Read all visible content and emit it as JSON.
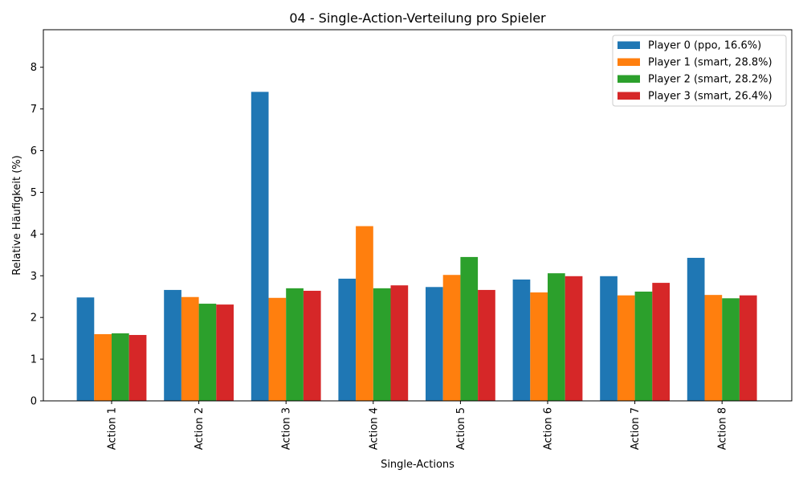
{
  "chart_data": {
    "type": "bar",
    "title": "04 - Single-Action-Verteilung pro Spieler",
    "xlabel": "Single-Actions",
    "ylabel": "Relative Häufigkeit (%)",
    "ylim": [
      0,
      8.9
    ],
    "yticks": [
      0,
      1,
      2,
      3,
      4,
      5,
      6,
      7,
      8
    ],
    "grid": false,
    "legend_position": "top-right",
    "categories": [
      "Action 1",
      "Action 2",
      "Action 3",
      "Action 4",
      "Action 5",
      "Action 6",
      "Action 7",
      "Action 8"
    ],
    "series": [
      {
        "name": "Player 0 (ppo, 16.6%)",
        "color": "#1f77b4",
        "values": [
          2.48,
          2.66,
          7.41,
          2.93,
          2.73,
          2.91,
          2.99,
          3.43
        ]
      },
      {
        "name": "Player 1 (smart, 28.8%)",
        "color": "#ff7f0e",
        "values": [
          1.6,
          2.49,
          2.47,
          4.19,
          3.02,
          2.6,
          2.53,
          2.54
        ]
      },
      {
        "name": "Player 2 (smart, 28.2%)",
        "color": "#2ca02c",
        "values": [
          1.62,
          2.33,
          2.7,
          2.7,
          3.45,
          3.06,
          2.62,
          2.46
        ]
      },
      {
        "name": "Player 3 (smart, 26.4%)",
        "color": "#d62728",
        "values": [
          1.58,
          2.31,
          2.64,
          2.77,
          2.66,
          2.99,
          2.83,
          2.53
        ]
      }
    ]
  }
}
